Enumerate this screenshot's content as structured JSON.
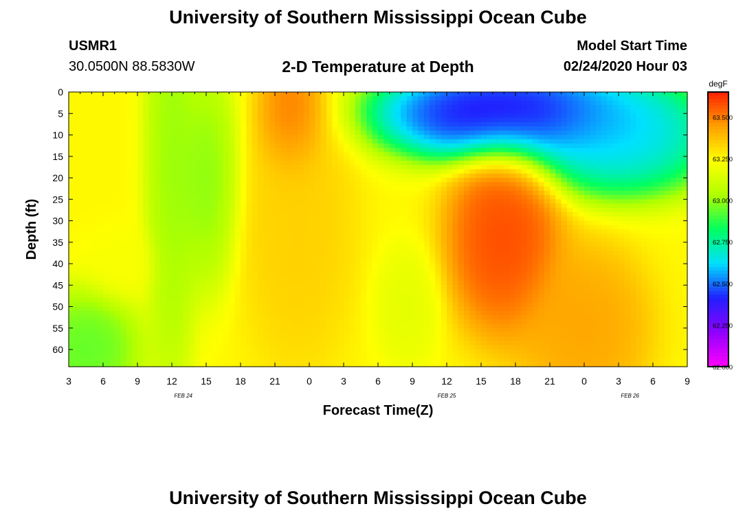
{
  "header": {
    "title": "University of Southern Mississippi Ocean Cube",
    "station": "USMR1",
    "coords": "30.0500N 88.5830W",
    "chart_title": "2-D Temperature at Depth",
    "model_label": "Model Start Time",
    "model_time": "02/24/2020 Hour 03",
    "footer_title": "University of Southern Mississippi Ocean Cube"
  },
  "colorbar": {
    "unit": "degF",
    "ticks": [
      "62.000",
      "62.250",
      "62.500",
      "62.750",
      "63.000",
      "63.250",
      "63.500"
    ],
    "range": [
      62.0,
      63.65
    ],
    "colors": [
      "#ff00ff",
      "#9000ff",
      "#2020ff",
      "#00e0ff",
      "#00ff60",
      "#b0ff00",
      "#ffff00",
      "#ffa000",
      "#ff2000"
    ]
  },
  "chart_data": {
    "type": "heatmap",
    "title": "2-D Temperature at Depth",
    "xlabel": "Forecast Time(Z)",
    "ylabel": "Depth (ft)",
    "x_tick_labels": [
      "3",
      "6",
      "9",
      "12",
      "15",
      "18",
      "21",
      "0",
      "3",
      "6",
      "9",
      "12",
      "15",
      "18",
      "21",
      "0",
      "3",
      "6",
      "9"
    ],
    "x_date_labels": [
      {
        "label": "FEB 24",
        "hour_index": 10
      },
      {
        "label": "FEB 25",
        "hour_index": 33
      },
      {
        "label": "FEB 26",
        "hour_index": 49
      }
    ],
    "x_range_hours": [
      0,
      54
    ],
    "y_ticks": [
      0,
      5,
      10,
      15,
      20,
      25,
      30,
      35,
      40,
      45,
      50,
      55,
      60
    ],
    "y_range": [
      0,
      64
    ],
    "value_unit": "degF",
    "value_range": [
      62.0,
      63.65
    ],
    "features": [
      {
        "hour": 9,
        "depth": 12,
        "value": 62.98,
        "sigma_h": 1.6,
        "sigma_d": 40
      },
      {
        "hour": 12,
        "depth": 20,
        "value": 62.96,
        "sigma_h": 2.0,
        "sigma_d": 18
      },
      {
        "hour": 1.5,
        "depth": 60,
        "value": 62.9,
        "sigma_h": 3.5,
        "sigma_d": 10
      },
      {
        "hour": 4.5,
        "depth": 40,
        "value": 63.22,
        "sigma_h": 2.2,
        "sigma_d": 6
      },
      {
        "hour": 19.5,
        "depth": 5,
        "value": 63.56,
        "sigma_h": 2.0,
        "sigma_d": 10
      },
      {
        "hour": 20,
        "depth": 30,
        "value": 63.35,
        "sigma_h": 3.5,
        "sigma_d": 25
      },
      {
        "hour": 29.5,
        "depth": 50,
        "value": 63.16,
        "sigma_h": 2.0,
        "sigma_d": 10
      },
      {
        "hour": 38,
        "depth": 34,
        "value": 63.62,
        "sigma_h": 3.5,
        "sigma_d": 16
      },
      {
        "hour": 45,
        "depth": 55,
        "value": 63.45,
        "sigma_h": 4.0,
        "sigma_d": 14
      },
      {
        "hour": 38,
        "depth": 5,
        "value": 62.25,
        "sigma_h": 8.0,
        "sigma_d": 8
      },
      {
        "hour": 48,
        "depth": 10,
        "value": 62.55,
        "sigma_h": 6.0,
        "sigma_d": 10
      }
    ],
    "background_value": 63.25
  },
  "axes": {
    "xlabel": "Forecast Time(Z)",
    "ylabel": "Depth (ft)"
  }
}
